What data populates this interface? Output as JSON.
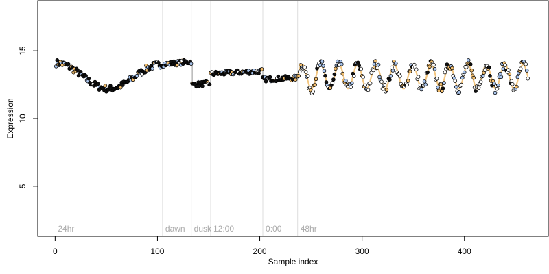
{
  "chart_data": {
    "type": "scatter",
    "title": "",
    "xlabel": "Sample index",
    "ylabel": "Expression",
    "xlim": [
      -17,
      482
    ],
    "ylim": [
      1.3,
      18.7
    ],
    "xticks": [
      0,
      100,
      200,
      300,
      400
    ],
    "yticks": [
      5,
      10,
      15
    ],
    "grid": false,
    "legend": "none",
    "colors": {
      "point_dark": "#111111",
      "point_light": "#ffffff",
      "point_blue": "#a9c4ec",
      "point_orange": "#f2be6e",
      "trend_blue": "#8fb0e0",
      "trend_orange": "#f0b860",
      "trend_gray": "#999999",
      "phase_line": "#dddddd",
      "phase_text": "#aaaaaa"
    },
    "phases": [
      {
        "label": "24hr",
        "x": 0
      },
      {
        "label": "dawn",
        "x": 105
      },
      {
        "label": "dusk",
        "x": 133
      },
      {
        "label": "12:00",
        "x": 152
      },
      {
        "label": "0:00",
        "x": 203
      },
      {
        "label": "48hr",
        "x": 237
      }
    ],
    "segments": [
      {
        "start": 1,
        "end": 104,
        "shape": "dip",
        "a": 14.1,
        "b": 14.0,
        "min": 12.2,
        "minAt": 52
      },
      {
        "start": 105,
        "end": 133,
        "shape": "flat",
        "a": 14.0,
        "b": 14.2
      },
      {
        "start": 134,
        "end": 151,
        "shape": "flat",
        "a": 12.5,
        "b": 12.6
      },
      {
        "start": 152,
        "end": 202,
        "shape": "flat",
        "a": 13.3,
        "b": 13.5
      },
      {
        "start": 203,
        "end": 236,
        "shape": "flat",
        "a": 12.9,
        "b": 13.0
      },
      {
        "start": 237,
        "end": 462,
        "shape": "wave",
        "center": 13.1,
        "amp": 0.9,
        "period": 18
      }
    ]
  }
}
